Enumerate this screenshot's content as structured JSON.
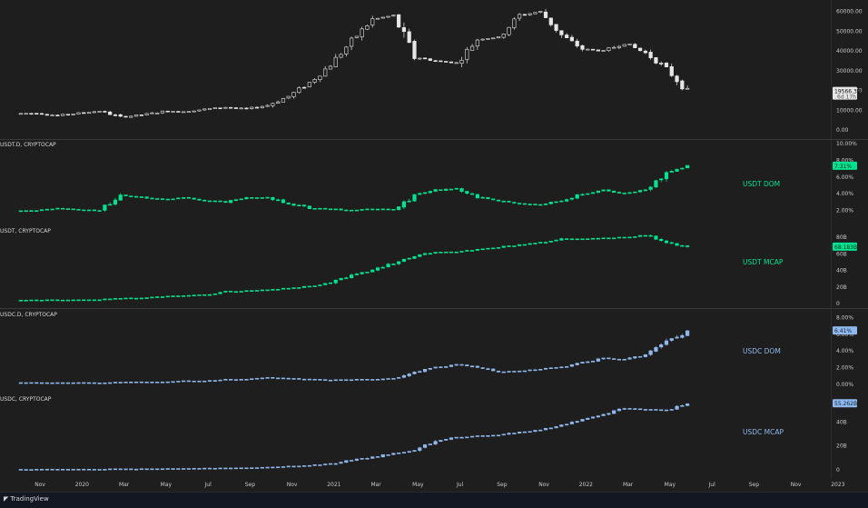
{
  "footer": {
    "brand": "TradingView",
    "brand_icon": "tradingview-logo-icon"
  },
  "time_axis": [
    "Nov",
    "2020",
    "Mar",
    "May",
    "Jul",
    "Sep",
    "Nov",
    "2021",
    "Mar",
    "May",
    "Jul",
    "Sep",
    "Nov",
    "2022",
    "Mar",
    "May",
    "Jul",
    "Sep",
    "Nov",
    "2023"
  ],
  "chart_data": [
    {
      "type": "candlestick",
      "pane": "btc",
      "title": "",
      "y_ticks": [
        "60000.00",
        "50000.00",
        "40000.00",
        "30000.00",
        "20000.00",
        "10000.00",
        "0.00"
      ],
      "ylim": [
        0,
        64000
      ],
      "last_value": "19566.38",
      "last_value_sub": "6d 17h",
      "x": [
        "2019-10",
        "2019-11",
        "2019-12",
        "2020-01",
        "2020-02",
        "2020-03",
        "2020-04",
        "2020-05",
        "2020-06",
        "2020-07",
        "2020-08",
        "2020-09",
        "2020-10",
        "2020-11",
        "2020-12",
        "2021-01",
        "2021-02",
        "2021-03",
        "2021-04",
        "2021-05",
        "2021-06",
        "2021-07",
        "2021-08",
        "2021-09",
        "2021-10",
        "2021-11",
        "2021-12",
        "2022-01",
        "2022-02",
        "2022-03",
        "2022-04",
        "2022-05",
        "2022-06"
      ],
      "values": [
        8300,
        8500,
        7300,
        8500,
        9600,
        6500,
        7600,
        9300,
        9300,
        10500,
        11500,
        10600,
        12500,
        17000,
        24000,
        33000,
        45000,
        56000,
        58000,
        37000,
        35000,
        34000,
        46000,
        47000,
        58000,
        60000,
        48000,
        41000,
        40000,
        44000,
        39000,
        31000,
        19500
      ]
    },
    {
      "type": "candlestick",
      "pane": "usdt-dom",
      "title": "USDT.D, CRYPTOCAP",
      "series": [
        {
          "name": "USDT DOM",
          "color": "#00e28f"
        }
      ],
      "y_ticks": [
        "10.00%",
        "8.00%",
        "6.00%",
        "4.00%",
        "2.00%"
      ],
      "ylim": [
        0,
        10
      ],
      "last_value": "7.31%",
      "x": [
        "2019-10",
        "2019-11",
        "2019-12",
        "2020-01",
        "2020-02",
        "2020-03",
        "2020-04",
        "2020-05",
        "2020-06",
        "2020-07",
        "2020-08",
        "2020-09",
        "2020-10",
        "2020-11",
        "2020-12",
        "2021-01",
        "2021-02",
        "2021-03",
        "2021-04",
        "2021-05",
        "2021-06",
        "2021-07",
        "2021-08",
        "2021-09",
        "2021-10",
        "2021-11",
        "2021-12",
        "2022-01",
        "2022-02",
        "2022-03",
        "2022-04",
        "2022-05",
        "2022-06"
      ],
      "values": [
        1.9,
        2.0,
        2.3,
        2.1,
        2.0,
        3.8,
        3.6,
        3.3,
        3.5,
        3.2,
        3.0,
        3.5,
        3.6,
        2.8,
        2.3,
        2.2,
        2.0,
        2.2,
        2.1,
        3.8,
        4.4,
        4.6,
        3.6,
        3.2,
        2.8,
        2.7,
        3.2,
        4.0,
        4.4,
        4.0,
        4.5,
        6.5,
        7.3
      ]
    },
    {
      "type": "candlestick",
      "pane": "usdt-mcap",
      "title": "USDT, CRYPTOCAP",
      "series": [
        {
          "name": "USDT MCAP",
          "color": "#00e28f"
        }
      ],
      "y_ticks": [
        "80B",
        "60B",
        "40B",
        "20B",
        "0"
      ],
      "ylim": [
        0,
        90
      ],
      "last_value": "68.183B",
      "x": [
        "2019-10",
        "2019-11",
        "2019-12",
        "2020-01",
        "2020-02",
        "2020-03",
        "2020-04",
        "2020-05",
        "2020-06",
        "2020-07",
        "2020-08",
        "2020-09",
        "2020-10",
        "2020-11",
        "2020-12",
        "2021-01",
        "2021-02",
        "2021-03",
        "2021-04",
        "2021-05",
        "2021-06",
        "2021-07",
        "2021-08",
        "2021-09",
        "2021-10",
        "2021-11",
        "2021-12",
        "2022-01",
        "2022-02",
        "2022-03",
        "2022-04",
        "2022-05",
        "2022-06"
      ],
      "values": [
        4.1,
        4.2,
        4.3,
        4.5,
        4.7,
        6.2,
        6.9,
        8.5,
        9.3,
        10.5,
        14.3,
        15.3,
        16.4,
        18.5,
        21.0,
        25.0,
        34.0,
        40.0,
        49.0,
        58.0,
        62.0,
        62.5,
        65.0,
        68.0,
        71.0,
        73.5,
        78.0,
        78.3,
        79.0,
        80.0,
        82.5,
        74.0,
        68.2
      ]
    },
    {
      "type": "candlestick",
      "pane": "usdc-dom",
      "title": "USDC.D, CRYPTOCAP",
      "series": [
        {
          "name": "USDC DOM",
          "color": "#8fb8ec"
        }
      ],
      "y_ticks": [
        "8.00%",
        "6.00%",
        "4.00%",
        "2.00%",
        "0.00%"
      ],
      "ylim": [
        0,
        8.8
      ],
      "last_value": "6.41%",
      "x": [
        "2019-10",
        "2019-11",
        "2019-12",
        "2020-01",
        "2020-02",
        "2020-03",
        "2020-04",
        "2020-05",
        "2020-06",
        "2020-07",
        "2020-08",
        "2020-09",
        "2020-10",
        "2020-11",
        "2020-12",
        "2021-01",
        "2021-02",
        "2021-03",
        "2021-04",
        "2021-05",
        "2021-06",
        "2021-07",
        "2021-08",
        "2021-09",
        "2021-10",
        "2021-11",
        "2021-12",
        "2022-01",
        "2022-02",
        "2022-03",
        "2022-04",
        "2022-05",
        "2022-06"
      ],
      "values": [
        0.2,
        0.2,
        0.2,
        0.2,
        0.2,
        0.3,
        0.3,
        0.3,
        0.4,
        0.4,
        0.6,
        0.6,
        0.8,
        0.7,
        0.6,
        0.5,
        0.6,
        0.6,
        0.7,
        1.5,
        2.0,
        2.4,
        2.0,
        1.5,
        1.6,
        1.8,
        2.1,
        2.6,
        3.1,
        3.0,
        3.5,
        5.0,
        6.4
      ]
    },
    {
      "type": "candlestick",
      "pane": "usdc-mcap",
      "title": "USDC, CRYPTOCAP",
      "series": [
        {
          "name": "USDC MCAP",
          "color": "#8fb8ec"
        }
      ],
      "y_ticks": [
        "40B",
        "20B",
        "0"
      ],
      "ylim": [
        0,
        60
      ],
      "last_value": "55.262B",
      "x": [
        "2019-10",
        "2019-11",
        "2019-12",
        "2020-01",
        "2020-02",
        "2020-03",
        "2020-04",
        "2020-05",
        "2020-06",
        "2020-07",
        "2020-08",
        "2020-09",
        "2020-10",
        "2020-11",
        "2020-12",
        "2021-01",
        "2021-02",
        "2021-03",
        "2021-04",
        "2021-05",
        "2021-06",
        "2021-07",
        "2021-08",
        "2021-09",
        "2021-10",
        "2021-11",
        "2021-12",
        "2022-01",
        "2022-02",
        "2022-03",
        "2022-04",
        "2022-05",
        "2022-06"
      ],
      "values": [
        0.4,
        0.4,
        0.5,
        0.5,
        0.6,
        0.7,
        0.8,
        1.0,
        1.1,
        1.3,
        1.4,
        1.8,
        2.2,
        2.9,
        3.7,
        5.0,
        8.0,
        10.5,
        14.0,
        16.0,
        24.0,
        27.0,
        28.5,
        29.0,
        31.5,
        33.5,
        37.0,
        42.0,
        46.0,
        51.5,
        50.5,
        50.0,
        55.3
      ]
    }
  ]
}
